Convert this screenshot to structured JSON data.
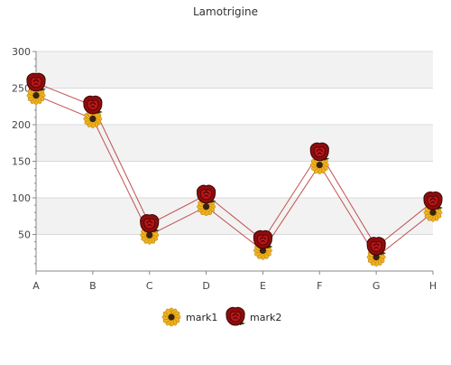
{
  "chart_data": {
    "type": "line",
    "title": "Lamotrigine",
    "xlabel": "",
    "ylabel": "",
    "categories": [
      "A",
      "B",
      "C",
      "D",
      "E",
      "F",
      "G",
      "H"
    ],
    "ylim": [
      0,
      300
    ],
    "yticks": [
      50,
      100,
      150,
      200,
      250,
      300
    ],
    "grid": true,
    "legend_position": "bottom-center",
    "series": [
      {
        "name": "mark1",
        "values": [
          240,
          208,
          49,
          88,
          28,
          145,
          19,
          80
        ],
        "color": "#c0504d",
        "marker": "sunflower-icon"
      },
      {
        "name": "mark2",
        "values": [
          257,
          226,
          64,
          104,
          42,
          162,
          33,
          95
        ],
        "color": "#c0504d",
        "marker": "rose-icon"
      }
    ]
  }
}
